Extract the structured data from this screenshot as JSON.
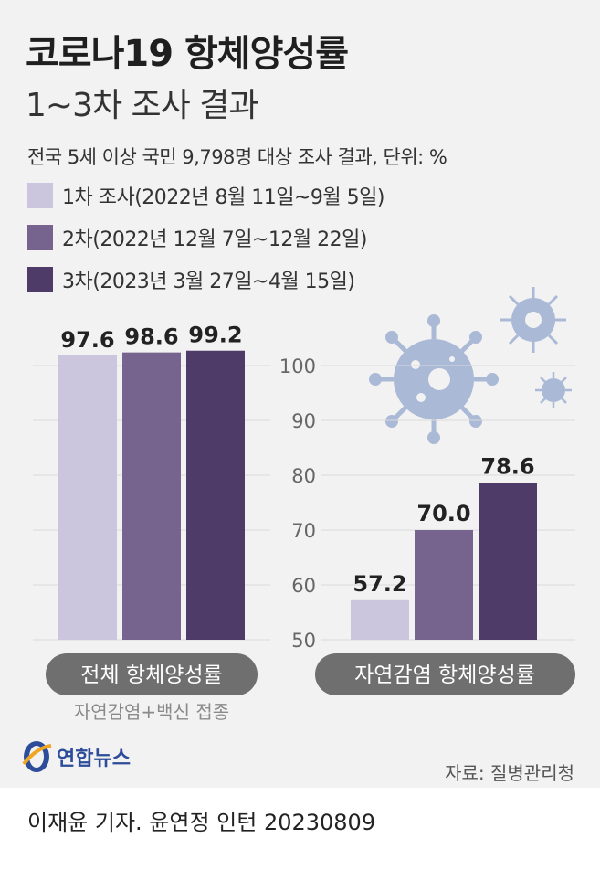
{
  "header": {
    "title": "코로나19 항체양성률",
    "subtitle": "1~3차 조사 결과",
    "note": "전국 5세 이상 국민 9,798명 대상 조사 결과, 단위: %"
  },
  "legend": [
    {
      "label": "1차 조사(2022년 8월 11일~9월 5일)",
      "color": "#cbc6dd"
    },
    {
      "label": "2차(2022년 12월 7일~12월 22일)",
      "color": "#76648f"
    },
    {
      "label": "3차(2023년 3월 27일~4월 15일)",
      "color": "#4f3b68"
    }
  ],
  "chart_data": [
    {
      "type": "bar",
      "categories": [
        "1차 조사(2022년 8월 11일~9월 5일)",
        "2차(2022년 12월 7일~12월 22일)",
        "3차(2023년 3월 27일~4월 15일)"
      ],
      "values": [
        97.6,
        98.6,
        99.2
      ],
      "value_labels": [
        "97.6",
        "98.6",
        "99.2"
      ],
      "colors": [
        "#cbc6dd",
        "#76648f",
        "#4f3b68"
      ],
      "xlabel": "전체 항체양성률",
      "xlabel_note": "자연감염+백신 접종",
      "ylim": [
        50,
        100
      ]
    },
    {
      "type": "bar",
      "categories": [
        "1차 조사(2022년 8월 11일~9월 5일)",
        "2차(2022년 12월 7일~12월 22일)",
        "3차(2023년 3월 27일~4월 15일)"
      ],
      "values": [
        57.2,
        70.0,
        78.6
      ],
      "value_labels": [
        "57.2",
        "70.0",
        "78.6"
      ],
      "colors": [
        "#cbc6dd",
        "#76648f",
        "#4f3b68"
      ],
      "xlabel": "자연감염 항체양성률",
      "ylim": [
        50,
        100
      ],
      "yticks": [
        "100",
        "90",
        "80",
        "70",
        "60",
        "50"
      ]
    }
  ],
  "footer": {
    "source": "자료: 질병관리청",
    "logo_text": "연합뉴스",
    "byline": "이재윤 기자. 윤연정 인턴  20230809"
  },
  "icons": [
    "virus-icon",
    "yonhap-logo-icon"
  ]
}
